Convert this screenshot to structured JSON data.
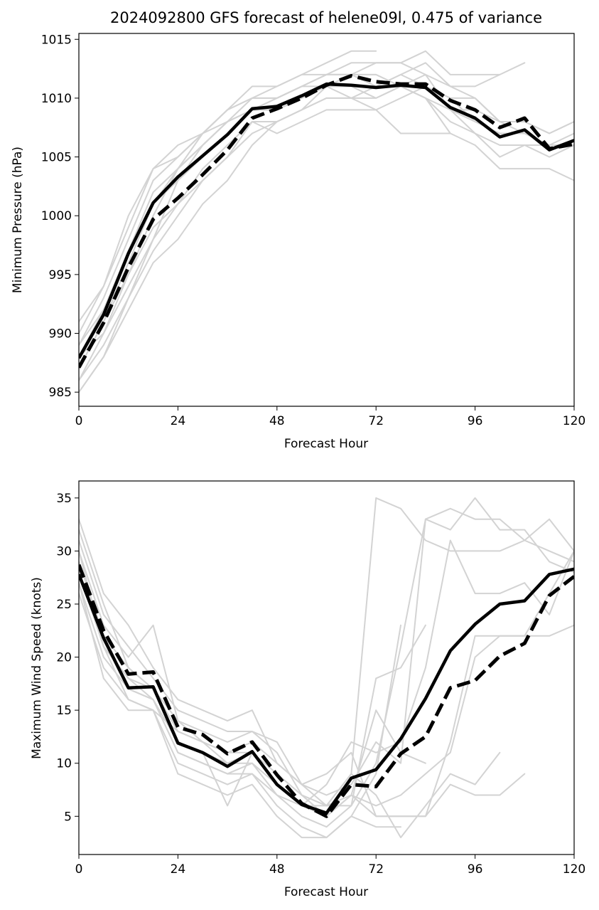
{
  "chart_data": [
    {
      "type": "line",
      "title": "2024092800 GFS forecast of helene09l, 0.475 of variance",
      "xlabel": "Forecast Hour",
      "ylabel": "Minimum Pressure (hPa)",
      "xlim": [
        0,
        120
      ],
      "ylim": [
        983.8,
        1015.5
      ],
      "xticks": [
        0,
        24,
        48,
        72,
        96,
        120
      ],
      "yticks": [
        985,
        990,
        995,
        1000,
        1005,
        1010,
        1015
      ],
      "grid": false,
      "x": [
        0,
        6,
        12,
        18,
        24,
        30,
        36,
        42,
        48,
        54,
        60,
        66,
        72,
        78,
        84,
        90,
        96,
        102,
        108,
        114,
        120
      ],
      "members": [
        [
          985,
          988,
          993,
          998,
          1003,
          1006,
          1008,
          1009,
          1010,
          1011,
          1012,
          1012,
          1011,
          1012,
          1013,
          1011,
          1010,
          1008,
          1007,
          1006,
          1006
        ],
        [
          986,
          990,
          995,
          1000,
          1004,
          1006,
          1008,
          1010,
          1011,
          1012,
          1013,
          1014,
          1014
        ],
        [
          987,
          991,
          996,
          1001,
          1004,
          1006,
          1008,
          1009,
          1010,
          1011,
          1011,
          1012,
          1012,
          1011,
          1010,
          1009,
          1009,
          1008,
          1008,
          1007,
          1008
        ],
        [
          988,
          992,
          997,
          1002,
          1004,
          1007,
          1009,
          1010,
          1010,
          1011,
          1012,
          1013,
          1013,
          1013,
          1012,
          1011,
          1011,
          1012,
          1013
        ],
        [
          989,
          993,
          998,
          1003,
          1005,
          1007,
          1009,
          1010,
          1010,
          1011,
          1012,
          1012,
          1013,
          1013,
          1014,
          1012,
          1012,
          1012
        ],
        [
          990,
          994,
          999,
          1004,
          1006,
          1007,
          1009,
          1011,
          1011,
          1012,
          1012,
          1012,
          1012,
          1011,
          1010,
          1008,
          1007,
          1006,
          1006,
          1005,
          1006
        ],
        [
          991,
          994,
          1000,
          1004,
          1005,
          1007,
          1008,
          1009,
          1009,
          1010,
          1011,
          1011,
          1010,
          1011,
          1012,
          1009,
          1007,
          1005,
          1006,
          1006,
          1006
        ],
        [
          987,
          991,
          995,
          999,
          1001,
          1003,
          1005,
          1008,
          1008,
          1009,
          1010,
          1010,
          1011,
          1011,
          1010,
          1007,
          1006,
          1004,
          1004,
          1004,
          1003
        ],
        [
          985,
          988,
          992,
          996,
          998,
          1001,
          1003,
          1006,
          1008,
          1009,
          1010,
          1010,
          1009,
          1010,
          1011,
          1010,
          1008
        ],
        [
          988,
          990,
          994,
          998,
          1001,
          1004,
          1006,
          1008,
          1007,
          1008,
          1009,
          1009,
          1009,
          1007,
          1007,
          1007
        ],
        [
          986,
          989,
          993,
          997,
          1000,
          1003,
          1005,
          1007,
          1008,
          1009,
          1011,
          1011,
          1011,
          1012,
          1011,
          1009,
          1008,
          1007,
          1007,
          1006,
          1007
        ],
        [
          989,
          992,
          997,
          1001,
          1003,
          1005,
          1007,
          1009,
          1009,
          1010,
          1011,
          1010,
          1010,
          1011,
          1011,
          1010,
          1010,
          1008,
          1008,
          1007,
          1008
        ]
      ],
      "mean_line": [
        987.9,
        991.6,
        996.8,
        1001.1,
        1003.3,
        1005.1,
        1006.9,
        1009.1,
        1009.3,
        1010.2,
        1011.2,
        1011.1,
        1010.9,
        1011.1,
        1010.9,
        1009.2,
        1008.3,
        1006.7,
        1007.3,
        1005.6,
        1006.4
      ],
      "dashed_line": [
        987.1,
        990.9,
        995.6,
        999.7,
        1001.5,
        1003.5,
        1005.6,
        1008.3,
        1009.1,
        1010.0,
        1011.1,
        1011.9,
        1011.4,
        1011.2,
        1011.2,
        1009.8,
        1009.0,
        1007.5,
        1008.3,
        1005.7,
        1006.1
      ]
    },
    {
      "type": "line",
      "title": "",
      "xlabel": "Forecast Hour",
      "ylabel": "Maximum Wind Speed (knots)",
      "xlim": [
        0,
        120
      ],
      "ylim": [
        1.4,
        36.6
      ],
      "xticks": [
        0,
        24,
        48,
        72,
        96,
        120
      ],
      "yticks": [
        5,
        10,
        15,
        20,
        25,
        30,
        35
      ],
      "grid": false,
      "x": [
        0,
        6,
        12,
        18,
        24,
        30,
        36,
        42,
        48,
        54,
        60,
        66,
        72,
        78,
        84,
        90,
        96,
        102,
        108,
        114,
        120
      ],
      "members": [
        [
          33,
          26,
          23,
          19,
          16,
          15,
          14,
          15,
          10,
          8,
          6,
          9,
          35,
          34,
          31,
          30,
          30,
          30,
          31,
          33,
          30
        ],
        [
          31,
          24,
          21,
          18,
          15,
          14,
          13,
          13,
          11,
          7,
          6,
          7,
          5,
          5,
          5,
          8,
          7,
          7,
          9
        ],
        [
          30,
          23,
          20,
          23,
          14,
          13,
          12,
          13,
          12,
          8,
          7,
          8,
          12,
          10,
          33,
          34,
          33,
          33,
          31,
          30,
          29
        ],
        [
          29,
          22,
          19,
          17,
          13,
          12,
          11,
          11,
          9,
          7,
          6,
          6,
          10,
          21,
          33,
          32,
          35,
          32,
          32,
          29,
          28
        ],
        [
          28,
          21,
          18,
          16,
          12,
          11,
          10,
          10,
          8,
          6,
          5,
          7,
          15,
          11,
          10
        ],
        [
          27,
          20,
          17,
          16,
          11,
          10,
          9,
          9,
          7,
          5,
          4,
          6,
          18,
          19,
          23
        ],
        [
          26,
          19,
          16,
          15,
          10,
          9,
          8,
          9,
          6,
          4,
          3,
          5,
          9,
          23
        ],
        [
          28,
          21,
          18,
          17,
          12,
          11,
          6,
          11,
          8,
          6,
          8,
          12,
          11,
          12,
          19,
          31,
          26,
          26,
          27,
          24,
          30
        ],
        [
          27,
          18,
          15,
          15,
          9,
          8,
          7,
          8,
          5,
          3,
          3,
          5,
          4,
          4
        ],
        [
          29,
          22,
          17,
          16,
          11,
          10,
          9,
          10,
          7,
          6,
          6,
          9,
          7,
          3,
          6,
          9,
          8,
          11
        ],
        [
          30,
          21,
          16,
          15,
          13,
          12,
          10,
          11,
          9,
          7,
          5,
          7,
          6,
          7,
          9,
          11,
          20,
          22,
          22,
          22,
          23
        ],
        [
          32,
          25,
          19,
          17,
          14,
          12,
          11,
          12,
          10,
          8,
          9,
          11,
          5,
          5,
          5,
          12,
          22,
          22,
          22,
          26,
          30
        ]
      ],
      "mean_line": [
        27.8,
        21.8,
        17.1,
        17.2,
        11.9,
        11.0,
        9.7,
        11.1,
        8.0,
        6.1,
        5.3,
        8.6,
        9.4,
        12.3,
        16.1,
        20.6,
        23.1,
        25.0,
        25.3,
        27.8,
        28.3
      ],
      "dashed_line": [
        28.7,
        22.5,
        18.4,
        18.6,
        13.4,
        12.7,
        10.9,
        12.0,
        8.9,
        6.2,
        5.0,
        8.0,
        7.8,
        10.9,
        12.5,
        17.1,
        17.8,
        20.1,
        21.3,
        25.8,
        27.6
      ]
    }
  ]
}
